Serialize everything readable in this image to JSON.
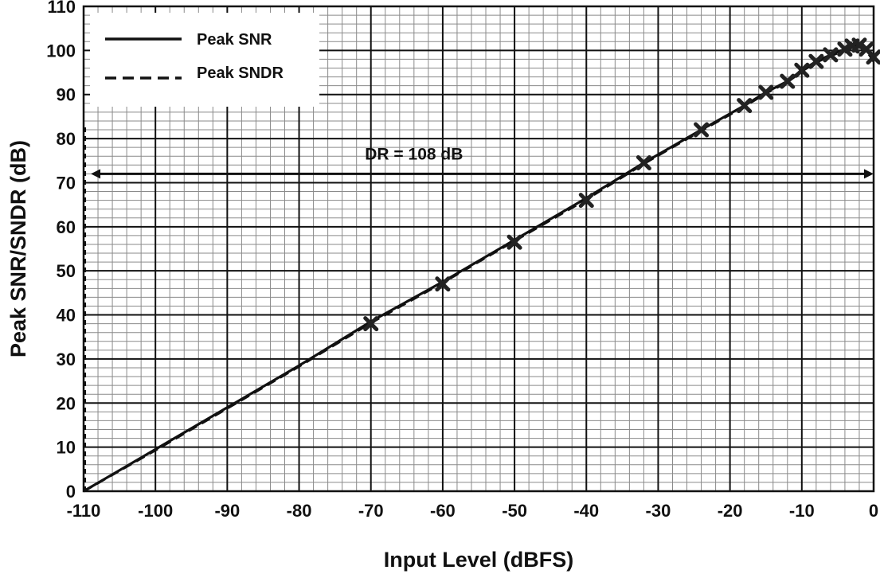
{
  "chart_data": {
    "type": "line",
    "title": "",
    "xlabel": "Input Level (dBFS)",
    "ylabel": "Peak SNR/SNDR (dB)",
    "xlim": [
      -110,
      0
    ],
    "ylim": [
      0,
      110
    ],
    "x_ticks": [
      -110,
      -100,
      -90,
      -80,
      -70,
      -60,
      -50,
      -40,
      -30,
      -20,
      -10,
      0
    ],
    "y_ticks": [
      0,
      10,
      20,
      30,
      40,
      50,
      60,
      70,
      80,
      90,
      100,
      110
    ],
    "grid": true,
    "legend_position": "top-left",
    "series": [
      {
        "name": "Peak SNR",
        "style": "solid",
        "color": "#111111",
        "points": [
          [
            -110,
            0
          ],
          [
            -100,
            9.5
          ],
          [
            -90,
            19
          ],
          [
            -80,
            28.5
          ],
          [
            -70,
            38.5
          ],
          [
            -60,
            47.5
          ],
          [
            -50,
            57
          ],
          [
            -40,
            66.5
          ],
          [
            -32,
            74.5
          ],
          [
            -24,
            82
          ],
          [
            -18,
            87.5
          ],
          [
            -15,
            90.5
          ],
          [
            -12,
            93
          ],
          [
            -10,
            95.5
          ],
          [
            -8,
            97.5
          ],
          [
            -6,
            99
          ],
          [
            -4,
            100.3
          ],
          [
            -3,
            101
          ],
          [
            -2,
            101.2
          ],
          [
            -1,
            100.5
          ],
          [
            0,
            98.5
          ]
        ]
      },
      {
        "name": "Peak SNDR",
        "style": "dashed",
        "color": "#111111",
        "points": [
          [
            -110,
            0
          ],
          [
            -100,
            9.3
          ],
          [
            -90,
            18.8
          ],
          [
            -80,
            28.3
          ],
          [
            -70,
            38.2
          ],
          [
            -60,
            47.3
          ],
          [
            -50,
            56.8
          ],
          [
            -40,
            66.2
          ],
          [
            -32,
            74.3
          ],
          [
            -24,
            81.8
          ],
          [
            -18,
            87.3
          ],
          [
            -15,
            90.3
          ],
          [
            -12,
            92.8
          ],
          [
            -10,
            95.3
          ],
          [
            -8,
            97.3
          ],
          [
            -6,
            98.8
          ],
          [
            -4,
            100
          ],
          [
            -3,
            100.6
          ],
          [
            -2,
            100.8
          ],
          [
            -1,
            100
          ],
          [
            0,
            97.5
          ]
        ]
      }
    ],
    "markers": {
      "shape": "x",
      "points": [
        [
          -70,
          38
        ],
        [
          -60,
          47
        ],
        [
          -50,
          56.5
        ],
        [
          -40,
          66
        ],
        [
          -32,
          74.5
        ],
        [
          -24,
          82
        ],
        [
          -18,
          87.5
        ],
        [
          -15,
          90.5
        ],
        [
          -12,
          93
        ],
        [
          -10,
          95.5
        ],
        [
          -8,
          97.5
        ],
        [
          -6,
          99
        ],
        [
          -4,
          100.3
        ],
        [
          -3,
          101
        ],
        [
          -2,
          101.2
        ],
        [
          -1,
          100.3
        ],
        [
          0,
          98.5
        ]
      ]
    },
    "annotations": [
      {
        "text": "DR = 108 dB",
        "arrow_from": [
          -109,
          72
        ],
        "arrow_to": [
          0,
          72
        ],
        "label_at": [
          -64,
          76.5
        ]
      }
    ],
    "reference_lines": [
      {
        "x": -109.8,
        "style": "dashed",
        "from_y": 0,
        "to_y": 83
      }
    ]
  }
}
